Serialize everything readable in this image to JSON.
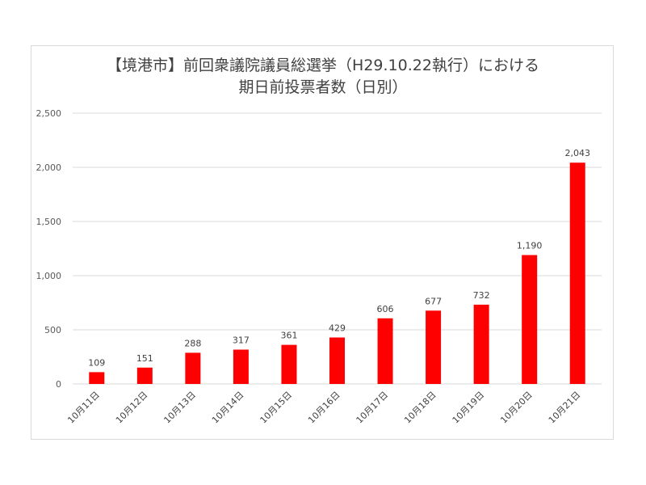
{
  "chart_data": {
    "type": "bar",
    "title_line1": "【境港市】前回衆議院議員総選挙（H29.10.22執行）における",
    "title_line2": "期日前投票者数（日別）",
    "categories": [
      "10月11日",
      "10月12日",
      "10月13日",
      "10月14日",
      "10月15日",
      "10月16日",
      "10月17日",
      "10月18日",
      "10月19日",
      "10月20日",
      "10月21日"
    ],
    "values": [
      109,
      151,
      288,
      317,
      361,
      429,
      606,
      677,
      732,
      1190,
      2043
    ],
    "value_labels": [
      "109",
      "151",
      "288",
      "317",
      "361",
      "429",
      "606",
      "677",
      "732",
      "1,190",
      "2,043"
    ],
    "ylim": [
      0,
      2500
    ],
    "yticks": [
      0,
      500,
      1000,
      1500,
      2000,
      2500
    ],
    "ytick_labels": [
      "0",
      "500",
      "1,000",
      "1,500",
      "2,000",
      "2,500"
    ],
    "grid": true,
    "bar_color": "#ff0000",
    "grid_color": "#d9d9d9"
  }
}
